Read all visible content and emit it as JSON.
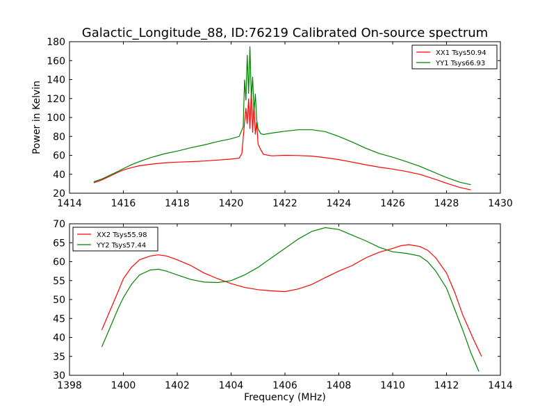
{
  "figure": {
    "title": "Galactic_Longitude_88, ID:76219 Calibrated On-source spectrum"
  },
  "chart_data": [
    {
      "type": "line",
      "title": "Galactic_Longitude_88, ID:76219 Calibrated On-source spectrum",
      "xlabel": "",
      "ylabel": "Power in Kelvin",
      "xlim": [
        1414,
        1430
      ],
      "ylim": [
        20,
        180
      ],
      "xticks": [
        1414,
        1416,
        1418,
        1420,
        1422,
        1424,
        1426,
        1428,
        1430
      ],
      "yticks": [
        20,
        40,
        60,
        80,
        100,
        120,
        140,
        160,
        180
      ],
      "grid": false,
      "legend_position": "top-right",
      "series": [
        {
          "name": "XX1 Tsys50.94",
          "color": "#ff0000",
          "x": [
            1414.9,
            1415.2,
            1415.5,
            1415.8,
            1416.0,
            1416.3,
            1416.6,
            1417.0,
            1417.5,
            1418.0,
            1418.5,
            1419.0,
            1419.5,
            1420.0,
            1420.3,
            1420.4,
            1420.45,
            1420.5,
            1420.55,
            1420.6,
            1420.65,
            1420.7,
            1420.75,
            1420.8,
            1420.85,
            1420.9,
            1420.95,
            1421.0,
            1421.1,
            1421.2,
            1421.5,
            1422.0,
            1422.5,
            1423.0,
            1423.5,
            1424.0,
            1424.5,
            1425.0,
            1425.5,
            1426.0,
            1426.5,
            1427.0,
            1427.5,
            1428.0,
            1428.5,
            1428.9
          ],
          "values": [
            31,
            34,
            38,
            42,
            44.5,
            47,
            49,
            50.5,
            52,
            52.8,
            53.3,
            54,
            55,
            56,
            57,
            62,
            78,
            95,
            110,
            93,
            120,
            88,
            128,
            84,
            115,
            82,
            95,
            72,
            66,
            61,
            59.5,
            60,
            59.8,
            59.2,
            57.5,
            55.5,
            52.8,
            50,
            47.5,
            45.5,
            43,
            40,
            35.5,
            30.5,
            26,
            23.5
          ]
        },
        {
          "name": "YY1 Tsys66.93",
          "color": "#008000",
          "x": [
            1414.9,
            1415.2,
            1415.5,
            1415.8,
            1416.0,
            1416.3,
            1416.6,
            1417.0,
            1417.5,
            1418.0,
            1418.5,
            1419.0,
            1419.5,
            1420.0,
            1420.3,
            1420.45,
            1420.5,
            1420.55,
            1420.6,
            1420.65,
            1420.7,
            1420.75,
            1420.8,
            1420.85,
            1420.9,
            1420.95,
            1421.0,
            1421.1,
            1421.2,
            1421.5,
            1422.0,
            1422.5,
            1423.0,
            1423.5,
            1424.0,
            1424.5,
            1425.0,
            1425.5,
            1426.0,
            1426.5,
            1427.0,
            1427.5,
            1428.0,
            1428.5,
            1428.9
          ],
          "values": [
            32,
            35,
            39,
            43,
            46,
            50,
            53.5,
            57.5,
            61.5,
            64.5,
            68,
            71,
            74.5,
            77.5,
            80,
            90,
            140,
            118,
            166,
            125,
            175,
            120,
            143,
            105,
            125,
            98,
            88,
            83,
            82,
            83.5,
            85.5,
            87,
            87,
            85,
            80,
            74,
            67.5,
            62,
            58,
            53.5,
            48.5,
            42.5,
            36.5,
            31.5,
            29
          ]
        }
      ]
    },
    {
      "type": "line",
      "title": "",
      "xlabel": "Frequency (MHz)",
      "ylabel": "",
      "xlim": [
        1398,
        1414
      ],
      "ylim": [
        30,
        70
      ],
      "xticks": [
        1398,
        1400,
        1402,
        1404,
        1406,
        1408,
        1410,
        1412,
        1414
      ],
      "yticks": [
        30,
        35,
        40,
        45,
        50,
        55,
        60,
        65,
        70
      ],
      "grid": false,
      "legend_position": "top-left",
      "series": [
        {
          "name": "XX2 Tsys55.98",
          "color": "#ff0000",
          "x": [
            1399.2,
            1399.5,
            1399.8,
            1400.0,
            1400.3,
            1400.6,
            1401.0,
            1401.3,
            1401.6,
            1402.0,
            1402.5,
            1403.0,
            1403.5,
            1404.0,
            1404.5,
            1405.0,
            1405.5,
            1406.0,
            1406.5,
            1407.0,
            1407.5,
            1408.0,
            1408.5,
            1409.0,
            1409.5,
            1410.0,
            1410.3,
            1410.6,
            1411.0,
            1411.3,
            1411.6,
            1412.0,
            1412.3,
            1412.6,
            1413.0,
            1413.3
          ],
          "values": [
            42,
            47,
            52,
            55.5,
            58.5,
            60.5,
            61.5,
            61.8,
            61.5,
            60.5,
            59,
            57,
            55.5,
            54.2,
            53.2,
            52.6,
            52.3,
            52.1,
            52.8,
            54,
            55.8,
            57.5,
            59,
            61,
            62.5,
            63.5,
            64.2,
            64.5,
            64,
            63,
            61,
            57,
            52,
            46,
            39.5,
            35
          ]
        },
        {
          "name": "YY2 Tsys57.44",
          "color": "#008000",
          "x": [
            1399.2,
            1399.5,
            1399.8,
            1400.0,
            1400.3,
            1400.6,
            1401.0,
            1401.3,
            1401.6,
            1402.0,
            1402.5,
            1403.0,
            1403.5,
            1404.0,
            1404.5,
            1405.0,
            1405.5,
            1406.0,
            1406.5,
            1407.0,
            1407.5,
            1408.0,
            1408.5,
            1409.0,
            1409.5,
            1410.0,
            1410.5,
            1411.0,
            1411.3,
            1411.6,
            1412.0,
            1412.3,
            1412.6,
            1412.9,
            1413.2
          ],
          "values": [
            37.5,
            42.5,
            47.5,
            50.5,
            54,
            56.5,
            57.8,
            58,
            57.5,
            56.5,
            55.3,
            54.6,
            54.5,
            55,
            56.5,
            58.5,
            61,
            63.5,
            66,
            68,
            69,
            68.5,
            67,
            65.5,
            63.8,
            62.6,
            62.2,
            61.5,
            60,
            57.5,
            53,
            47.5,
            42,
            36,
            31
          ]
        }
      ]
    }
  ]
}
